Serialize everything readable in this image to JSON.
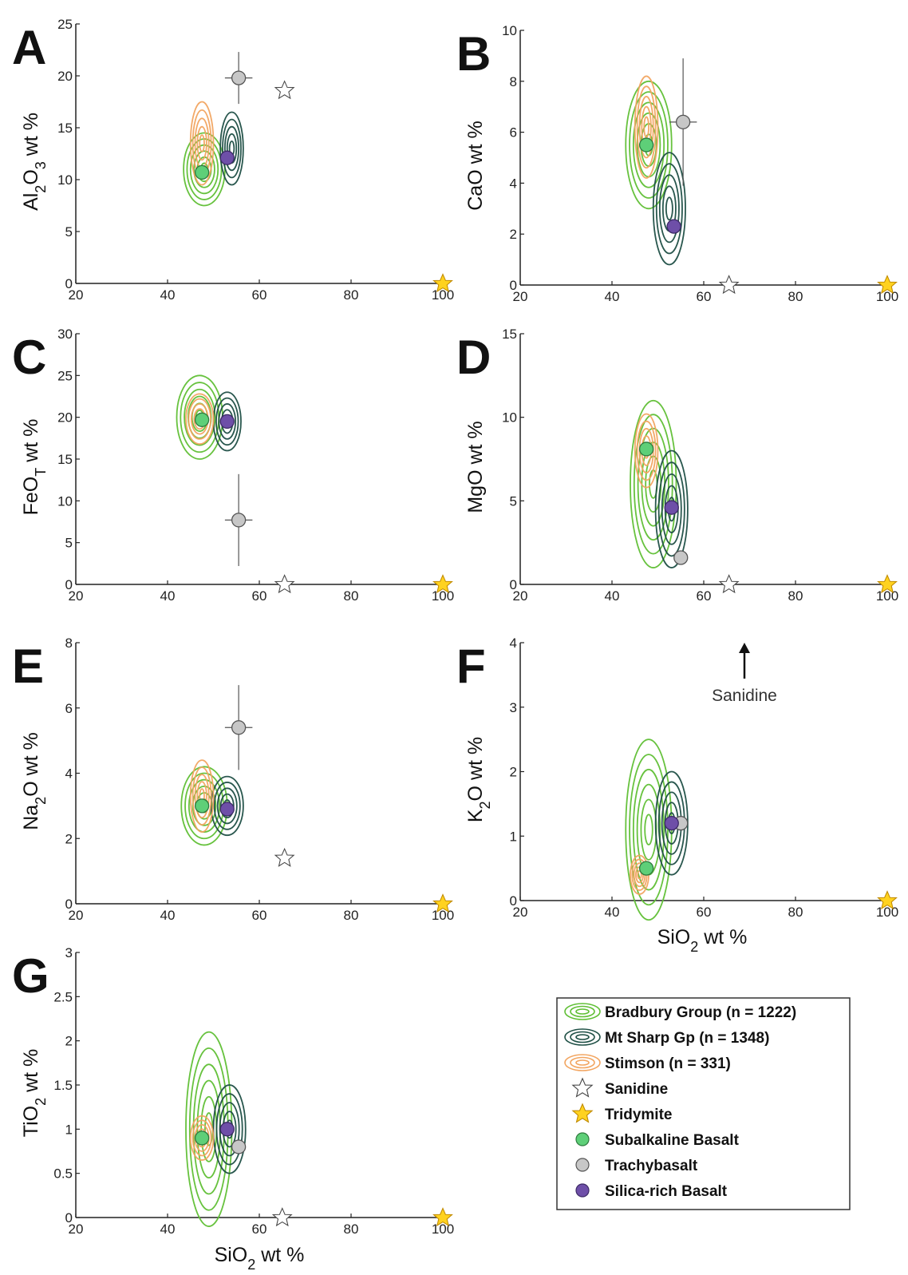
{
  "colors": {
    "bradbury": "#5fbf34",
    "mtsharp": "#1e4f45",
    "stimson": "#f2a560",
    "subalkaline": "#5ecf78",
    "trachybasalt": "#c7c7c7",
    "silica_rich": "#6e4fa8",
    "tridymite": "#ffd21f",
    "sanidine": "#ffffff"
  },
  "x_axis": {
    "label": "SiO2 wt %",
    "ticks": [
      "20",
      "40",
      "60",
      "80",
      "100"
    ],
    "range": [
      20,
      100
    ]
  },
  "annotation": {
    "text": "Sanidine"
  },
  "legend": {
    "items": [
      {
        "label": "Bradbury Group (n = 1222)",
        "icon": "green-contour-icon"
      },
      {
        "label": "Mt Sharp Gp (n = 1348)",
        "icon": "dark-green-contour-icon"
      },
      {
        "label": "Stimson (n = 331)",
        "icon": "orange-contour-icon"
      },
      {
        "label": "Sanidine",
        "icon": "white-star-icon"
      },
      {
        "label": "Tridymite",
        "icon": "yellow-star-icon"
      },
      {
        "label": "Subalkaline Basalt",
        "icon": "green-dot-icon"
      },
      {
        "label": "Trachybasalt",
        "icon": "gray-dot-icon"
      },
      {
        "label": "Silica-rich Basalt",
        "icon": "purple-dot-icon"
      }
    ]
  },
  "chart_data": [
    {
      "panel": "A",
      "type": "scatter",
      "ylabel": "Al2O3 wt %",
      "ylim": [
        0,
        25
      ],
      "yticks": [
        "0",
        "5",
        "10",
        "15",
        "20",
        "25"
      ],
      "xlim": [
        20,
        100
      ],
      "points": {
        "subalkaline": {
          "x": 47.5,
          "y": 10.7
        },
        "trachybasalt": {
          "x": 55.5,
          "y": 19.8,
          "xerr": 3,
          "yerr": 2.5
        },
        "silica_rich": {
          "x": 53,
          "y": 12.1
        },
        "sanidine": {
          "x": 65.5,
          "y": 18.6
        },
        "tridymite": {
          "x": 100,
          "y": 0
        }
      },
      "contours": {
        "bradbury": {
          "cx": 48,
          "cy": 11,
          "sx": 4.5,
          "sy": 3.5
        },
        "mtsharp": {
          "cx": 54,
          "cy": 13,
          "sx": 2.5,
          "sy": 3.5
        },
        "stimson": {
          "cx": 47.5,
          "cy": 13.5,
          "sx": 2.5,
          "sy": 4
        }
      }
    },
    {
      "panel": "B",
      "type": "scatter",
      "ylabel": "CaO wt %",
      "ylim": [
        0,
        10
      ],
      "yticks": [
        "0",
        "2",
        "4",
        "6",
        "8",
        "10"
      ],
      "xlim": [
        20,
        100
      ],
      "points": {
        "subalkaline": {
          "x": 47.5,
          "y": 5.5
        },
        "trachybasalt": {
          "x": 55.5,
          "y": 6.4,
          "xerr": 3,
          "yerr": 2.5
        },
        "silica_rich": {
          "x": 53.5,
          "y": 2.3
        },
        "sanidine": {
          "x": 65.5,
          "y": 0
        },
        "tridymite": {
          "x": 100,
          "y": 0
        }
      },
      "contours": {
        "bradbury": {
          "cx": 48,
          "cy": 5.5,
          "sx": 5,
          "sy": 2.5
        },
        "mtsharp": {
          "cx": 52.5,
          "cy": 3,
          "sx": 3.5,
          "sy": 2.2
        },
        "stimson": {
          "cx": 47.5,
          "cy": 6.2,
          "sx": 2.5,
          "sy": 2
        }
      }
    },
    {
      "panel": "C",
      "type": "scatter",
      "ylabel": "FeOT wt %",
      "ylim": [
        0,
        30
      ],
      "yticks": [
        "0",
        "5",
        "10",
        "15",
        "20",
        "25",
        "30"
      ],
      "xlim": [
        20,
        100
      ],
      "points": {
        "subalkaline": {
          "x": 47.5,
          "y": 19.7
        },
        "trachybasalt": {
          "x": 55.5,
          "y": 7.7,
          "xerr": 3,
          "yerr": 5.5
        },
        "silica_rich": {
          "x": 53,
          "y": 19.5
        },
        "sanidine": {
          "x": 65.5,
          "y": 0
        },
        "tridymite": {
          "x": 100,
          "y": 0
        }
      },
      "contours": {
        "bradbury": {
          "cx": 47,
          "cy": 20,
          "sx": 5,
          "sy": 5
        },
        "mtsharp": {
          "cx": 53,
          "cy": 19.5,
          "sx": 3,
          "sy": 3.5
        },
        "stimson": {
          "cx": 47,
          "cy": 19.8,
          "sx": 3,
          "sy": 3
        }
      }
    },
    {
      "panel": "D",
      "type": "scatter",
      "ylabel": "MgO wt %",
      "ylim": [
        0,
        15
      ],
      "yticks": [
        "0",
        "5",
        "10",
        "15"
      ],
      "xlim": [
        20,
        100
      ],
      "points": {
        "subalkaline": {
          "x": 47.5,
          "y": 8.1
        },
        "trachybasalt": {
          "x": 55,
          "y": 1.6
        },
        "silica_rich": {
          "x": 53,
          "y": 4.6
        },
        "sanidine": {
          "x": 65.5,
          "y": 0
        },
        "tridymite": {
          "x": 100,
          "y": 0
        }
      },
      "contours": {
        "bradbury": {
          "cx": 49,
          "cy": 6,
          "sx": 5,
          "sy": 5
        },
        "mtsharp": {
          "cx": 53,
          "cy": 4.5,
          "sx": 3.5,
          "sy": 3.5
        },
        "stimson": {
          "cx": 47.5,
          "cy": 8,
          "sx": 2.5,
          "sy": 2.2
        }
      }
    },
    {
      "panel": "E",
      "type": "scatter",
      "ylabel": "Na2O wt %",
      "ylim": [
        0,
        8
      ],
      "yticks": [
        "0",
        "2",
        "4",
        "6",
        "8"
      ],
      "xlim": [
        20,
        100
      ],
      "points": {
        "subalkaline": {
          "x": 47.5,
          "y": 3.0
        },
        "trachybasalt": {
          "x": 55.5,
          "y": 5.4,
          "xerr": 3,
          "yerr": 1.3
        },
        "silica_rich": {
          "x": 53,
          "y": 2.9
        },
        "sanidine": {
          "x": 65.5,
          "y": 1.4
        },
        "tridymite": {
          "x": 100,
          "y": 0
        }
      },
      "contours": {
        "bradbury": {
          "cx": 48,
          "cy": 3,
          "sx": 5,
          "sy": 1.2
        },
        "mtsharp": {
          "cx": 53,
          "cy": 3,
          "sx": 3.5,
          "sy": 0.9
        },
        "stimson": {
          "cx": 47.5,
          "cy": 3.3,
          "sx": 2.5,
          "sy": 1.1
        }
      }
    },
    {
      "panel": "F",
      "type": "scatter",
      "ylabel": "K2O wt %",
      "ylim": [
        0,
        4
      ],
      "yticks": [
        "0",
        "1",
        "2",
        "3",
        "4"
      ],
      "xlim": [
        20,
        100
      ],
      "xlabel": "SiO2 wt %",
      "points": {
        "subalkaline": {
          "x": 47.5,
          "y": 0.5
        },
        "trachybasalt": {
          "x": 55,
          "y": 1.2
        },
        "silica_rich": {
          "x": 53,
          "y": 1.2
        },
        "tridymite": {
          "x": 100,
          "y": 0
        }
      },
      "contours": {
        "bradbury": {
          "cx": 48,
          "cy": 1.1,
          "sx": 5,
          "sy": 1.4
        },
        "mtsharp": {
          "cx": 53,
          "cy": 1.2,
          "sx": 3.5,
          "sy": 0.8
        },
        "stimson": {
          "cx": 46,
          "cy": 0.4,
          "sx": 2,
          "sy": 0.3
        }
      }
    },
    {
      "panel": "G",
      "type": "scatter",
      "ylabel": "TiO2 wt %",
      "ylim": [
        0,
        3
      ],
      "yticks": [
        "0",
        "0.5",
        "1",
        "1.5",
        "2",
        "2.5",
        "3"
      ],
      "xlim": [
        20,
        100
      ],
      "xlabel": "SiO2 wt %",
      "points": {
        "subalkaline": {
          "x": 47.5,
          "y": 0.9
        },
        "trachybasalt": {
          "x": 55.5,
          "y": 0.8
        },
        "silica_rich": {
          "x": 53,
          "y": 1.0
        },
        "sanidine": {
          "x": 65,
          "y": 0
        },
        "tridymite": {
          "x": 100,
          "y": 0
        }
      },
      "contours": {
        "bradbury": {
          "cx": 49,
          "cy": 1.0,
          "sx": 5,
          "sy": 1.1
        },
        "mtsharp": {
          "cx": 53.5,
          "cy": 1.0,
          "sx": 3.5,
          "sy": 0.5
        },
        "stimson": {
          "cx": 47.5,
          "cy": 0.9,
          "sx": 2.5,
          "sy": 0.25
        }
      }
    }
  ]
}
